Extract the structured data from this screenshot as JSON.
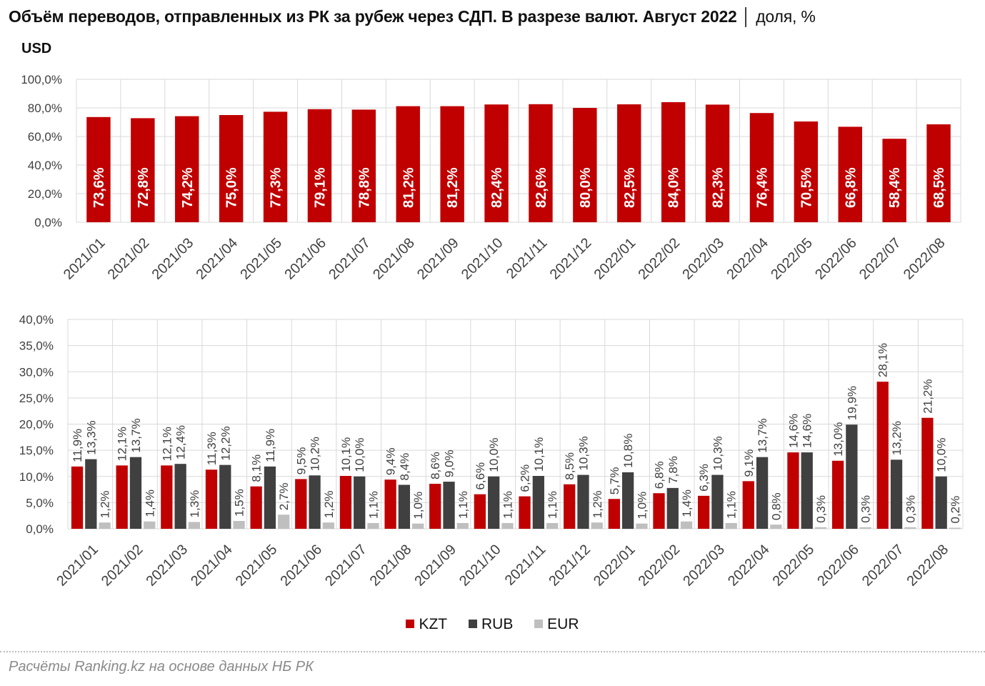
{
  "title": "Объём переводов, отправленных из РК за рубеж через СДП. В разрезе валют. Август 2022",
  "title_unit": "│ доля, %",
  "subtitle": "USD",
  "source": "Расчёты Ranking.kz на основе данных НБ РК",
  "colors": {
    "kzt": "#c00000",
    "rub": "#404040",
    "eur": "#bfbfbf",
    "grid": "#d9d9d9"
  },
  "legend": [
    {
      "label": "KZT",
      "color": "#c00000"
    },
    {
      "label": "RUB",
      "color": "#404040"
    },
    {
      "label": "EUR",
      "color": "#bfbfbf"
    }
  ],
  "chart_data": [
    {
      "type": "bar",
      "title": "USD",
      "categories": [
        "2021/01",
        "2021/02",
        "2021/03",
        "2021/04",
        "2021/05",
        "2021/06",
        "2021/07",
        "2021/08",
        "2021/09",
        "2021/10",
        "2021/11",
        "2021/12",
        "2022/01",
        "2022/02",
        "2022/03",
        "2022/04",
        "2022/05",
        "2022/06",
        "2022/07",
        "2022/08"
      ],
      "values": [
        73.6,
        72.8,
        74.2,
        75.0,
        77.3,
        79.1,
        78.8,
        81.2,
        81.2,
        82.4,
        82.6,
        80.0,
        82.5,
        84.0,
        82.3,
        76.4,
        70.5,
        66.8,
        58.4,
        68.5
      ],
      "labels": [
        "73,6%",
        "72,8%",
        "74,2%",
        "75,0%",
        "77,3%",
        "79,1%",
        "78,8%",
        "81,2%",
        "81,2%",
        "82,4%",
        "82,6%",
        "80,0%",
        "82,5%",
        "84,0%",
        "82,3%",
        "76,4%",
        "70,5%",
        "66,8%",
        "58,4%",
        "68,5%"
      ],
      "ylim": [
        0,
        100
      ],
      "yticks": [
        0,
        20,
        40,
        60,
        80,
        100
      ],
      "ytick_labels": [
        "0,0%",
        "20,0%",
        "40,0%",
        "60,0%",
        "80,0%",
        "100,0%"
      ]
    },
    {
      "type": "bar",
      "categories": [
        "2021/01",
        "2021/02",
        "2021/03",
        "2021/04",
        "2021/05",
        "2021/06",
        "2021/07",
        "2021/08",
        "2021/09",
        "2021/10",
        "2021/11",
        "2021/12",
        "2022/01",
        "2022/02",
        "2022/03",
        "2022/04",
        "2022/05",
        "2022/06",
        "2022/07",
        "2022/08"
      ],
      "series": [
        {
          "name": "KZT",
          "values": [
            11.9,
            12.1,
            12.1,
            11.3,
            8.1,
            9.5,
            10.1,
            9.4,
            8.6,
            6.6,
            6.2,
            8.5,
            5.7,
            6.8,
            6.3,
            9.1,
            14.6,
            13.0,
            28.1,
            21.2
          ],
          "labels": [
            "11,9%",
            "12,1%",
            "12,1%",
            "11,3%",
            "8,1%",
            "9,5%",
            "10,1%",
            "9,4%",
            "8,6%",
            "6,6%",
            "6,2%",
            "8,5%",
            "5,7%",
            "6,8%",
            "6,3%",
            "9,1%",
            "14,6%",
            "13,0%",
            "28,1%",
            "21,2%"
          ]
        },
        {
          "name": "RUB",
          "values": [
            13.3,
            13.7,
            12.4,
            12.2,
            11.9,
            10.2,
            10.0,
            8.4,
            9.0,
            10.0,
            10.1,
            10.3,
            10.8,
            7.8,
            10.3,
            13.7,
            14.6,
            19.9,
            13.2,
            10.0
          ],
          "labels": [
            "13,3%",
            "13,7%",
            "12,4%",
            "12,2%",
            "11,9%",
            "10,2%",
            "10,0%",
            "8,4%",
            "9,0%",
            "10,0%",
            "10,1%",
            "10,3%",
            "10,8%",
            "7,8%",
            "10,3%",
            "13,7%",
            "14,6%",
            "19,9%",
            "13,2%",
            "10,0%"
          ]
        },
        {
          "name": "EUR",
          "values": [
            1.2,
            1.4,
            1.3,
            1.5,
            2.7,
            1.2,
            1.1,
            1.0,
            1.1,
            1.1,
            1.1,
            1.2,
            1.0,
            1.4,
            1.1,
            0.8,
            0.3,
            0.3,
            0.3,
            0.2
          ],
          "labels": [
            "1,2%",
            "1,4%",
            "1,3%",
            "1,5%",
            "2,7%",
            "1,2%",
            "1,1%",
            "1,0%",
            "1,1%",
            "1,1%",
            "1,1%",
            "1,2%",
            "1,0%",
            "1,4%",
            "1,1%",
            "0,8%",
            "0,3%",
            "0,3%",
            "0,3%",
            "0,2%"
          ]
        }
      ],
      "ylim": [
        0,
        40
      ],
      "yticks": [
        0,
        5,
        10,
        15,
        20,
        25,
        30,
        35,
        40
      ],
      "ytick_labels": [
        "0,0%",
        "5,0%",
        "10,0%",
        "15,0%",
        "20,0%",
        "25,0%",
        "30,0%",
        "35,0%",
        "40,0%"
      ]
    }
  ]
}
